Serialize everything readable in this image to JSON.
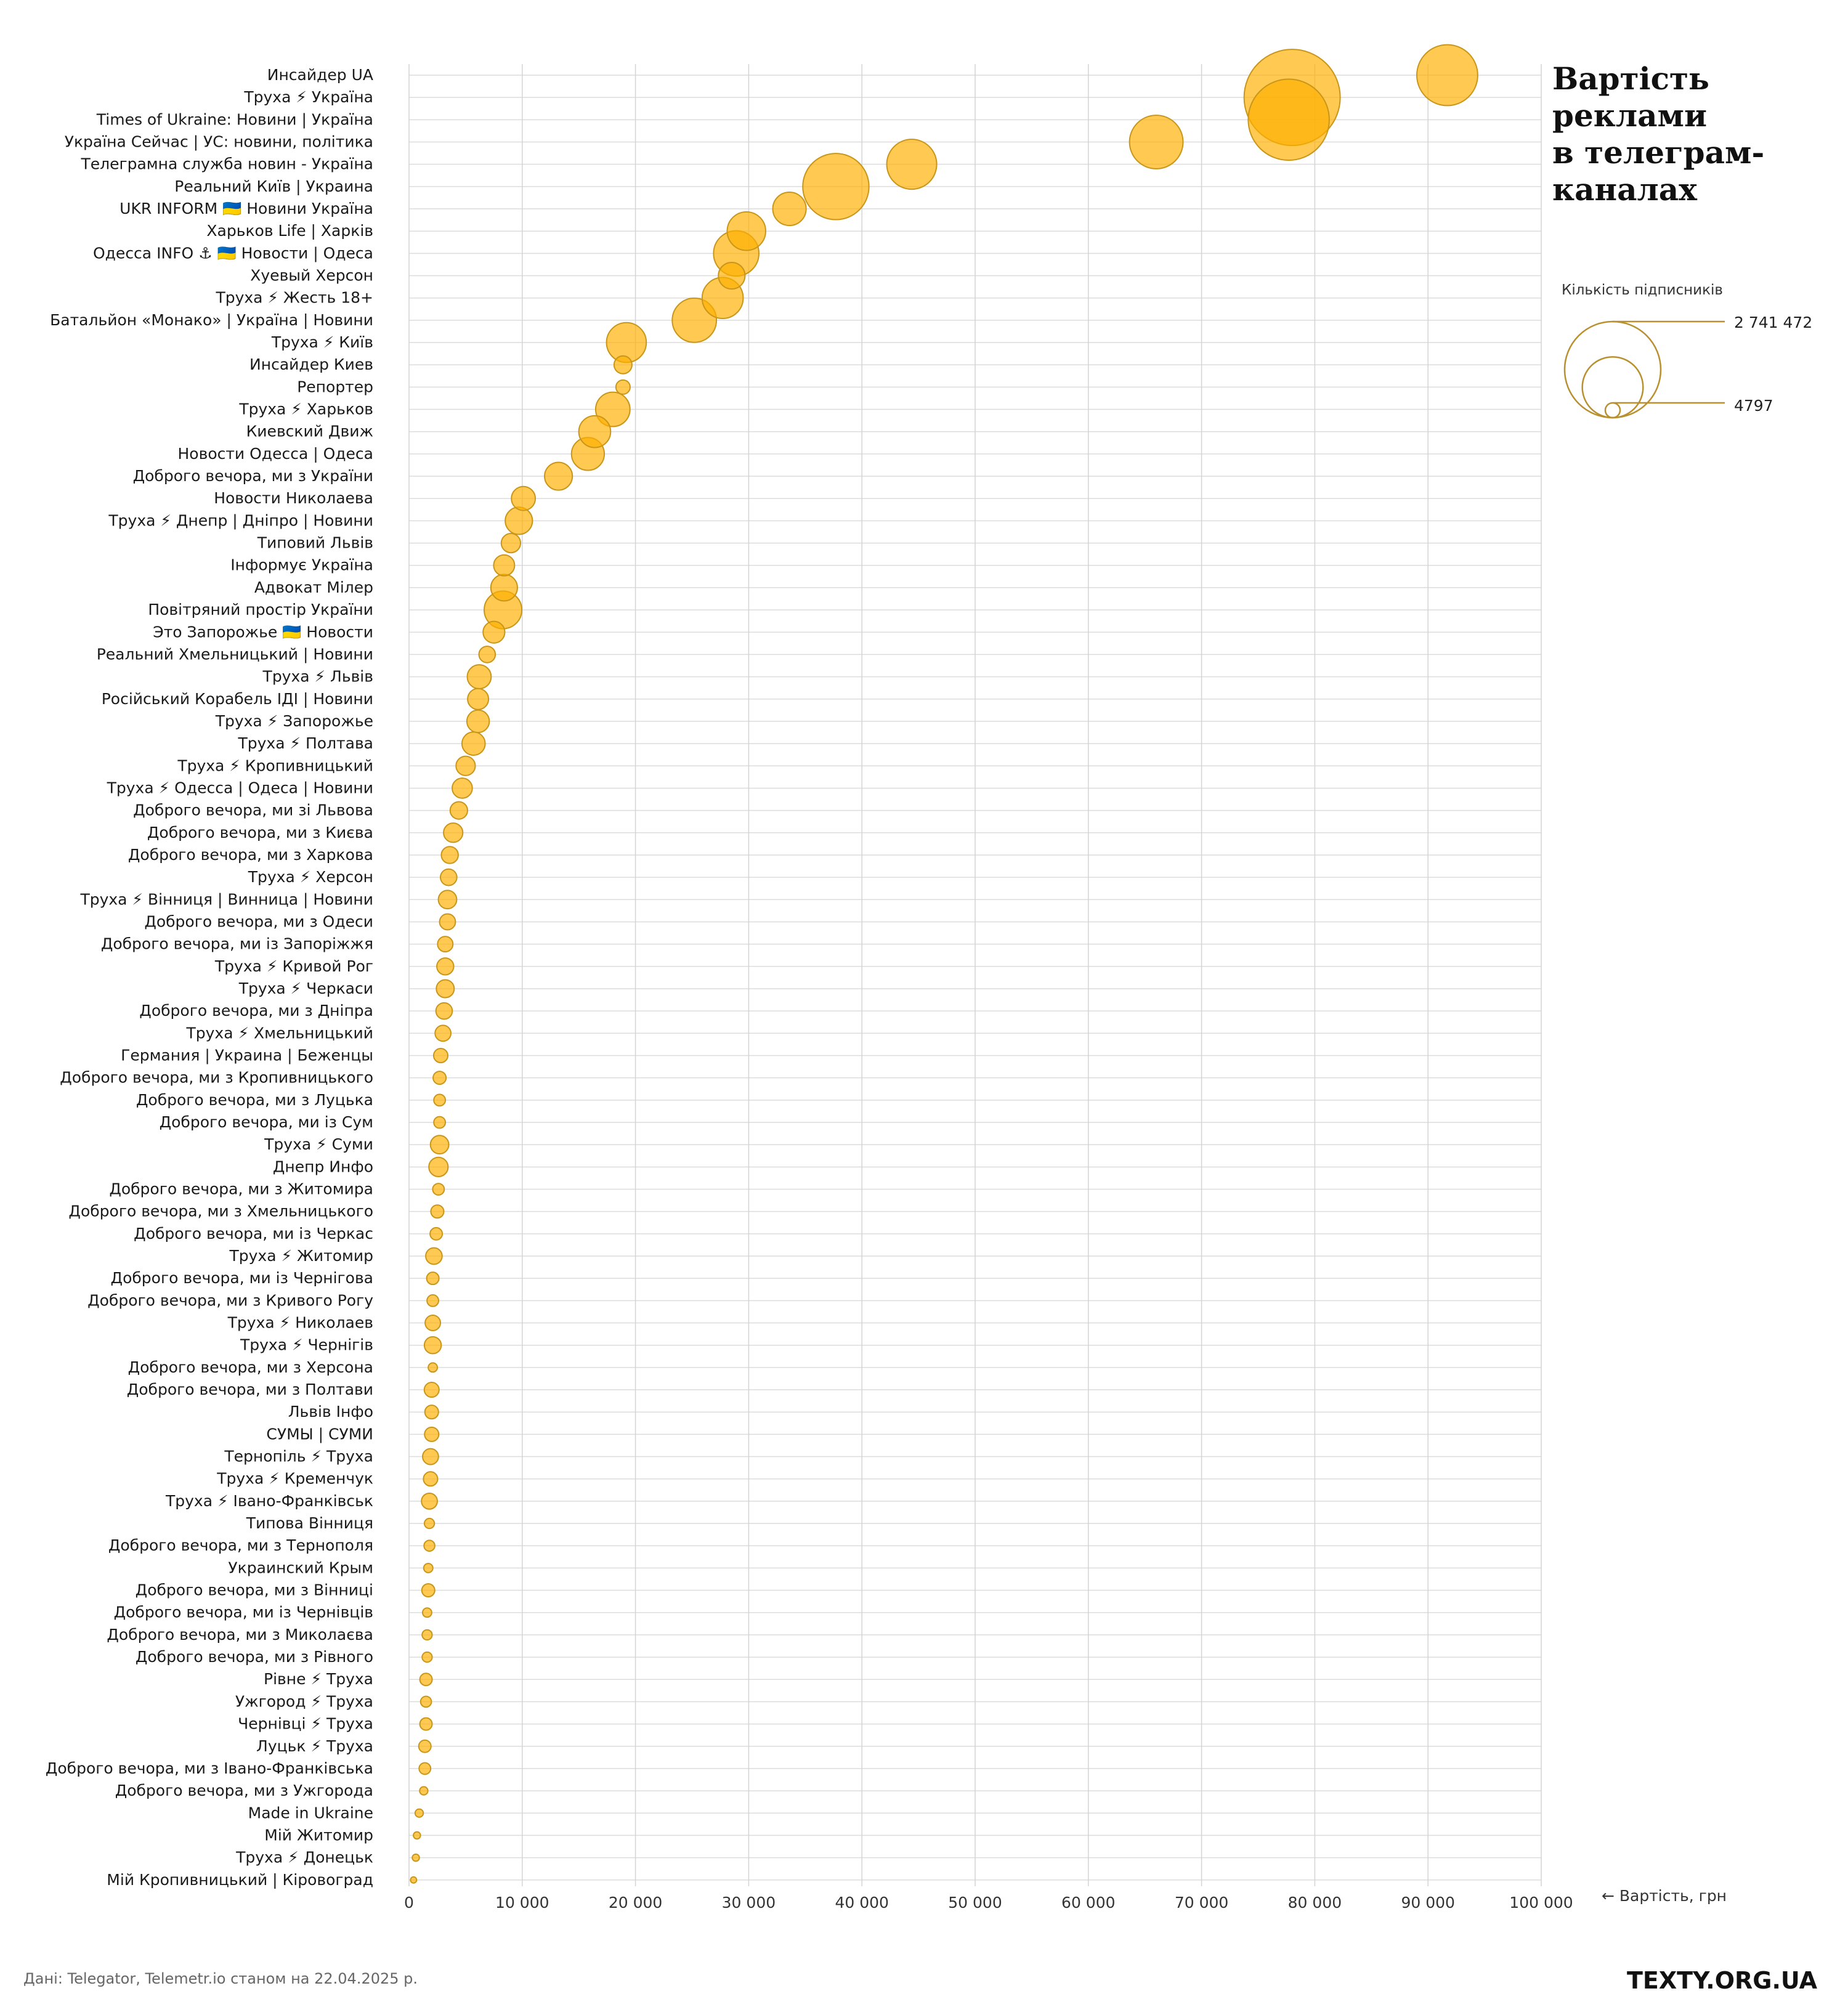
{
  "chart_data": {
    "type": "scatter",
    "title": [
      "Вартість",
      "реклами",
      "в телеграм-",
      "каналах"
    ],
    "xlabel": "← Вартість, грн",
    "xlim": [
      0,
      100000
    ],
    "xticks": [
      0,
      10000,
      20000,
      30000,
      40000,
      50000,
      60000,
      70000,
      80000,
      90000,
      100000
    ],
    "xtick_labels": [
      "0",
      "10 000",
      "20 000",
      "30 000",
      "40 000",
      "50 000",
      "60 000",
      "70 000",
      "80 000",
      "90 000",
      "100 000"
    ],
    "size_legend": {
      "title": "Кількість підписників",
      "max_value": 2741472,
      "max_label": "2 741 472",
      "min_value": 4797,
      "min_label": "4797"
    },
    "grid": true,
    "bubble_color": "#FFB000",
    "bubble_stroke": "#C8961A",
    "legend_color": "#B8902F",
    "points": [
      {
        "name": "Инсайдер UA",
        "cost": 91700,
        "subs": 1100000
      },
      {
        "name": "Труха ⚡ Україна",
        "cost": 78000,
        "subs": 2741472
      },
      {
        "name": "Times of Ukraine: Новини | Україна",
        "cost": 77700,
        "subs": 1950000
      },
      {
        "name": "Україна Сейчас | УС: новини, політика",
        "cost": 66000,
        "subs": 850000
      },
      {
        "name": "Телеграмна служба новин - Україна",
        "cost": 44400,
        "subs": 740000
      },
      {
        "name": "Реальний Київ | Украина",
        "cost": 37700,
        "subs": 1300000
      },
      {
        "name": "UKR INFORM 🇺🇦 Новини Україна",
        "cost": 33600,
        "subs": 330000
      },
      {
        "name": "Харьков Life | Харків",
        "cost": 29800,
        "subs": 440000
      },
      {
        "name": "Одесса INFO ⚓ 🇺🇦 Новости | Одеса",
        "cost": 28900,
        "subs": 610000
      },
      {
        "name": "Хуевый Херсон",
        "cost": 28500,
        "subs": 210000
      },
      {
        "name": "Труха ⚡ Жесть 18+",
        "cost": 27700,
        "subs": 500000
      },
      {
        "name": "Батальйон «Монако» | Україна | Новини",
        "cost": 25200,
        "subs": 580000
      },
      {
        "name": "Труха ⚡ Київ",
        "cost": 19200,
        "subs": 470000
      },
      {
        "name": "Инсайдер Киев",
        "cost": 18900,
        "subs": 95000
      },
      {
        "name": "Репортер",
        "cost": 18900,
        "subs": 60000
      },
      {
        "name": "Труха ⚡ Харьков",
        "cost": 18000,
        "subs": 350000
      },
      {
        "name": "Киевский Движ",
        "cost": 16400,
        "subs": 300000
      },
      {
        "name": "Новости Одесса | Одеса",
        "cost": 15800,
        "subs": 320000
      },
      {
        "name": "Доброго вечора, ми з України",
        "cost": 13200,
        "subs": 230000
      },
      {
        "name": "Новости Николаева",
        "cost": 10100,
        "subs": 170000
      },
      {
        "name": "Труха ⚡ Днепр | Дніпро | Новини",
        "cost": 9700,
        "subs": 220000
      },
      {
        "name": "Типовий Львів",
        "cost": 9000,
        "subs": 110000
      },
      {
        "name": "Інформує Україна",
        "cost": 8400,
        "subs": 130000
      },
      {
        "name": "Адвокат Мілер",
        "cost": 8400,
        "subs": 210000
      },
      {
        "name": "Повітряний простір України",
        "cost": 8300,
        "subs": 420000
      },
      {
        "name": "Это Запорожье 🇺🇦 Новости",
        "cost": 7500,
        "subs": 140000
      },
      {
        "name": "Реальний Хмельницький | Новини",
        "cost": 6900,
        "subs": 80000
      },
      {
        "name": "Труха ⚡ Львів",
        "cost": 6200,
        "subs": 170000
      },
      {
        "name": "Російський Корабель ІДІ | Новини",
        "cost": 6100,
        "subs": 130000
      },
      {
        "name": "Труха ⚡ Запорожье",
        "cost": 6100,
        "subs": 150000
      },
      {
        "name": "Труха ⚡ Полтава",
        "cost": 5700,
        "subs": 160000
      },
      {
        "name": "Труха ⚡ Кропивницький",
        "cost": 5000,
        "subs": 110000
      },
      {
        "name": "Труха ⚡ Одесса | Одеса | Новини",
        "cost": 4700,
        "subs": 120000
      },
      {
        "name": "Доброго вечора, ми зі Львова",
        "cost": 4400,
        "subs": 90000
      },
      {
        "name": "Доброго вечора, ми з Києва",
        "cost": 3900,
        "subs": 110000
      },
      {
        "name": "Доброго вечора, ми з Харкова",
        "cost": 3600,
        "subs": 85000
      },
      {
        "name": "Труха ⚡ Херсон",
        "cost": 3500,
        "subs": 80000
      },
      {
        "name": "Труха ⚡ Вінниця | Винница | Новини",
        "cost": 3400,
        "subs": 100000
      },
      {
        "name": "Доброго вечора, ми з Одеси",
        "cost": 3400,
        "subs": 75000
      },
      {
        "name": "Доброго вечора, ми із Запоріжжя",
        "cost": 3200,
        "subs": 70000
      },
      {
        "name": "Труха ⚡ Кривой Рог",
        "cost": 3200,
        "subs": 85000
      },
      {
        "name": "Труха ⚡ Черкаси",
        "cost": 3200,
        "subs": 95000
      },
      {
        "name": "Доброго вечора, ми з Дніпра",
        "cost": 3100,
        "subs": 80000
      },
      {
        "name": "Труха ⚡ Хмельницький",
        "cost": 3000,
        "subs": 75000
      },
      {
        "name": "Германия | Украина | Беженцы",
        "cost": 2800,
        "subs": 60000
      },
      {
        "name": "Доброго вечора, ми з Кропивницького",
        "cost": 2700,
        "subs": 50000
      },
      {
        "name": "Доброго вечора, ми з Луцька",
        "cost": 2700,
        "subs": 40000
      },
      {
        "name": "Доброго вечора, ми із Сум",
        "cost": 2700,
        "subs": 40000
      },
      {
        "name": "Труха ⚡ Суми",
        "cost": 2700,
        "subs": 100000
      },
      {
        "name": "Днепр Инфо",
        "cost": 2600,
        "subs": 110000
      },
      {
        "name": "Доброго вечора, ми з Житомира",
        "cost": 2600,
        "subs": 40000
      },
      {
        "name": "Доброго вечора, ми з Хмельницького",
        "cost": 2500,
        "subs": 50000
      },
      {
        "name": "Доброго вечора, ми із Черкас",
        "cost": 2400,
        "subs": 45000
      },
      {
        "name": "Труха ⚡ Житомир",
        "cost": 2200,
        "subs": 80000
      },
      {
        "name": "Доброго вечора, ми із Чернігова",
        "cost": 2100,
        "subs": 45000
      },
      {
        "name": "Доброго вечора, ми з Кривого Рогу",
        "cost": 2100,
        "subs": 40000
      },
      {
        "name": "Труха ⚡ Николаев",
        "cost": 2100,
        "subs": 70000
      },
      {
        "name": "Труха ⚡ Чернігів",
        "cost": 2100,
        "subs": 85000
      },
      {
        "name": "Доброго вечора, ми з Херсона",
        "cost": 2100,
        "subs": 25000
      },
      {
        "name": "Доброго вечора, ми з Полтави",
        "cost": 2000,
        "subs": 65000
      },
      {
        "name": "Львів Інфо",
        "cost": 2000,
        "subs": 55000
      },
      {
        "name": "СУМЫ | СУМИ",
        "cost": 2000,
        "subs": 60000
      },
      {
        "name": "Тернопіль ⚡ Труха",
        "cost": 1900,
        "subs": 75000
      },
      {
        "name": "Труха ⚡ Кременчук",
        "cost": 1900,
        "subs": 60000
      },
      {
        "name": "Труха ⚡ Івано-Франківськ",
        "cost": 1800,
        "subs": 75000
      },
      {
        "name": "Типова Вінниця",
        "cost": 1800,
        "subs": 30000
      },
      {
        "name": "Доброго вечора, ми з Тернополя",
        "cost": 1800,
        "subs": 35000
      },
      {
        "name": "Украинский Крым",
        "cost": 1700,
        "subs": 25000
      },
      {
        "name": "Доброго вечора, ми з Вінниці",
        "cost": 1700,
        "subs": 50000
      },
      {
        "name": "Доброго вечора, ми із Чернівців",
        "cost": 1600,
        "subs": 25000
      },
      {
        "name": "Доброго вечора, ми з Миколаєва",
        "cost": 1600,
        "subs": 30000
      },
      {
        "name": "Доброго вечора, ми з Рівного",
        "cost": 1600,
        "subs": 30000
      },
      {
        "name": "Рівне ⚡ Труха",
        "cost": 1500,
        "subs": 45000
      },
      {
        "name": "Ужгород ⚡ Труха",
        "cost": 1500,
        "subs": 35000
      },
      {
        "name": "Чернівці ⚡ Труха",
        "cost": 1500,
        "subs": 45000
      },
      {
        "name": "Луцьк ⚡ Труха",
        "cost": 1400,
        "subs": 45000
      },
      {
        "name": "Доброго вечора, ми з Івано-Франківська",
        "cost": 1400,
        "subs": 40000
      },
      {
        "name": "Доброго вечора, ми з Ужгорода",
        "cost": 1300,
        "subs": 20000
      },
      {
        "name": "Made in Ukraine",
        "cost": 900,
        "subs": 20000
      },
      {
        "name": "Мій Житомир",
        "cost": 700,
        "subs": 15000
      },
      {
        "name": "Труха ⚡ Донецьк",
        "cost": 600,
        "subs": 15000
      },
      {
        "name": "Мій Кропивницький | Кіровоград",
        "cost": 400,
        "subs": 4797
      }
    ]
  },
  "footer": {
    "source": "Дані: Telegator, Telemetr.io станом на 22.04.2025 р.",
    "brand": "TEXTY.ORG.UA"
  }
}
